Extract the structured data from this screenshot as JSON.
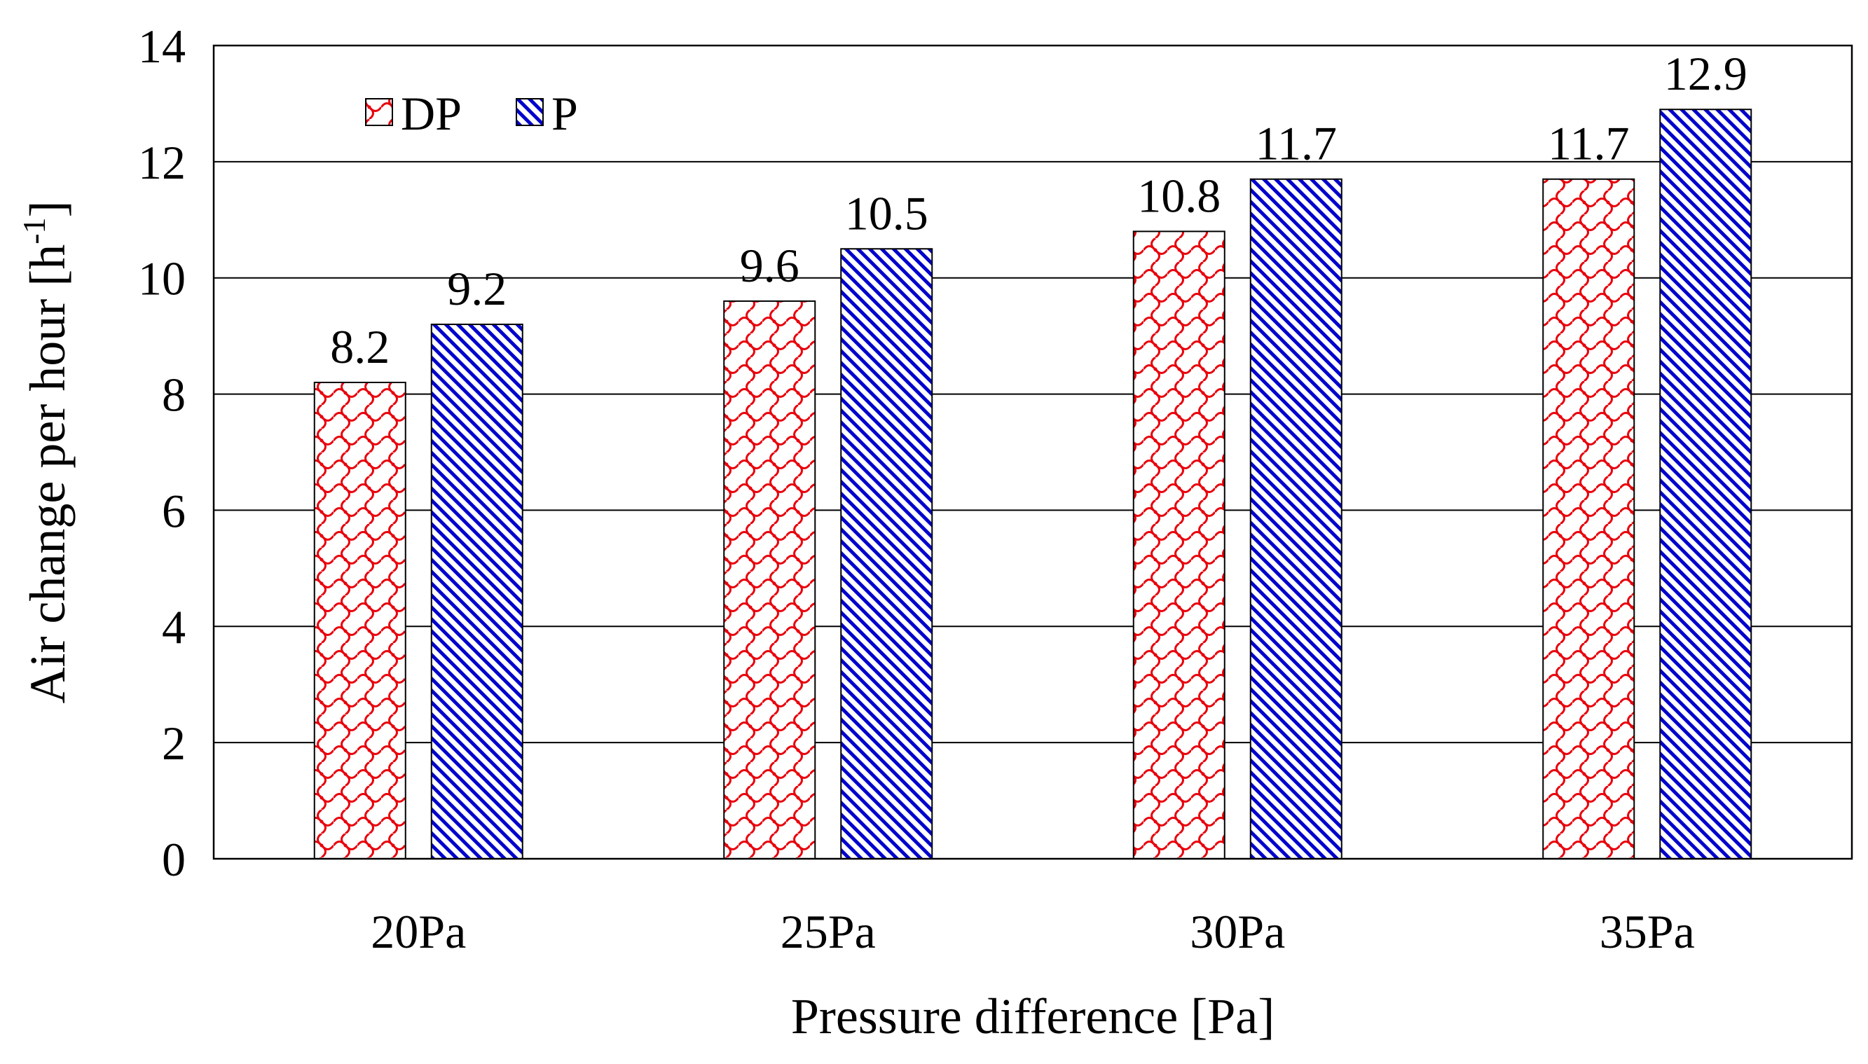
{
  "chart_data": {
    "type": "bar",
    "title": "",
    "categories": [
      "20Pa",
      "25Pa",
      "30Pa",
      "35Pa"
    ],
    "series": [
      {
        "name": "DP",
        "values": [
          8.2,
          9.6,
          10.8,
          11.7
        ],
        "value_labels": [
          "8.2",
          "9.6",
          "10.8",
          "11.7"
        ],
        "color": "#e8000b",
        "pattern": "red-cross-hatch"
      },
      {
        "name": "P",
        "values": [
          9.2,
          10.5,
          11.7,
          12.9
        ],
        "value_labels": [
          "9.2",
          "10.5",
          "11.7",
          "12.9"
        ],
        "color": "#0000cc",
        "pattern": "blue-diagonal-stripes"
      }
    ],
    "xlabel": "Pressure difference [Pa]",
    "ylabel_main": "Air change per hour [h",
    "ylabel_sup": "-1",
    "ylabel_end": "]",
    "ylim": [
      0,
      14
    ],
    "yticks": [
      0,
      2,
      4,
      6,
      8,
      10,
      12,
      14
    ],
    "ytick_labels": [
      "0",
      "2",
      "4",
      "6",
      "8",
      "10",
      "12",
      "14"
    ],
    "grid": true,
    "legend_position": "top-left"
  }
}
